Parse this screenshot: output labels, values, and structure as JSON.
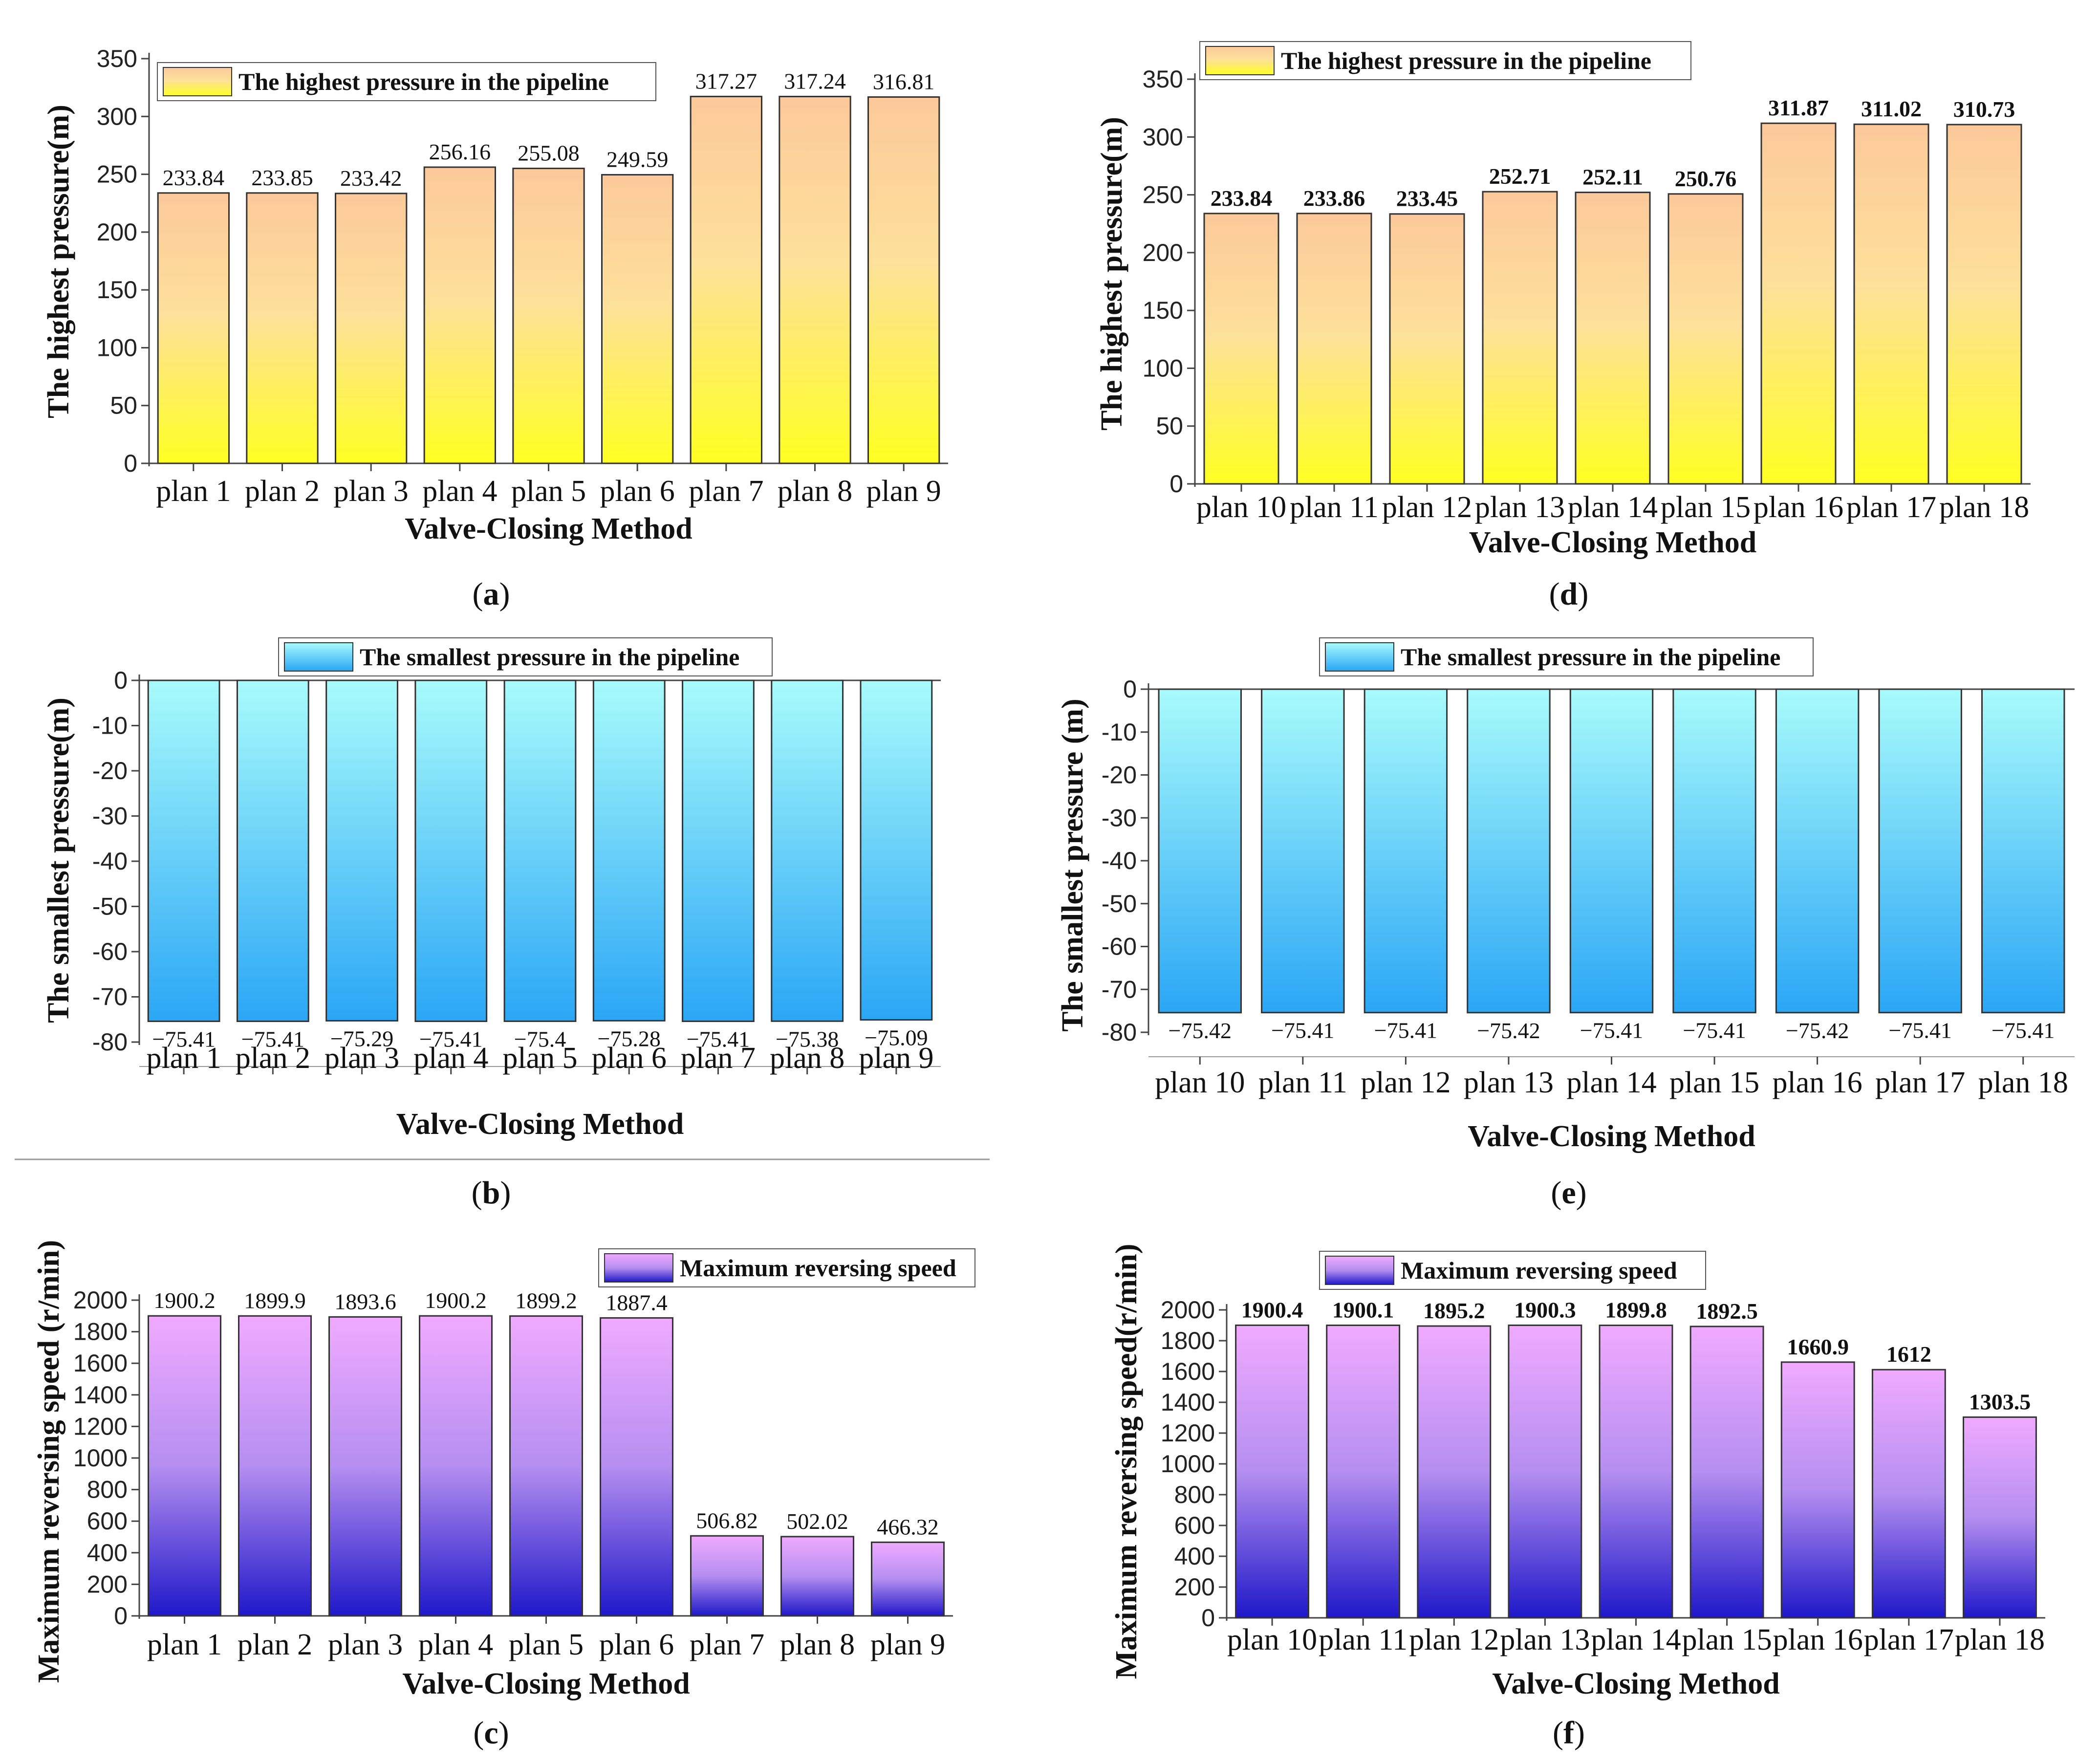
{
  "colors": {
    "orange_top": "#fcc99a",
    "yellow_bottom": "#ffff22",
    "cyan_top": "#a8fbfb",
    "blue_bottom": "#2aa6f5",
    "violet_top": "#f0aaff",
    "indigo_bottom": "#1f18c9",
    "edge": "#333333",
    "axis": "#444444"
  },
  "captions": {
    "a": {
      "open": "(",
      "letter": "a",
      "close": ")"
    },
    "b": {
      "open": "(",
      "letter": "b",
      "close": ")"
    },
    "c": {
      "open": "(",
      "letter": "c",
      "close": ")"
    },
    "d": {
      "open": "(",
      "letter": "d",
      "close": ")"
    },
    "e": {
      "open": "(",
      "letter": "e",
      "close": ")"
    },
    "f": {
      "open": "(",
      "letter": "f",
      "close": ")"
    }
  },
  "chart_data": [
    {
      "id": "a",
      "type": "bar",
      "theme": "orange",
      "title": "The highest pressure in the pipeline",
      "xlabel": "Valve-Closing Method",
      "ylabel": "The highest pressure(m)",
      "categories": [
        "plan 1",
        "plan 2",
        "plan 3",
        "plan 4",
        "plan 5",
        "plan 6",
        "plan 7",
        "plan 8",
        "plan 9"
      ],
      "values": [
        233.84,
        233.85,
        233.42,
        256.16,
        255.08,
        249.59,
        317.27,
        317.24,
        316.81
      ],
      "data_labels": [
        "233.84",
        "233.85",
        "233.42",
        "256.16",
        "255.08",
        "249.59",
        "317.27",
        "317.24",
        "316.81"
      ],
      "ylim": [
        0,
        350
      ],
      "yticks": [
        0,
        50,
        100,
        150,
        200,
        250,
        300,
        350
      ],
      "ytick_labels": [
        "0",
        "50",
        "100",
        "150",
        "200",
        "250",
        "300",
        "350"
      ],
      "legend": "top-left",
      "label_weight": "normal"
    },
    {
      "id": "b",
      "type": "bar",
      "theme": "cyan",
      "title": "The smallest pressure in the pipeline",
      "xlabel": "Valve-Closing Method",
      "ylabel": "The smallest pressure(m)",
      "categories": [
        "plan 1",
        "plan 2",
        "plan 3",
        "plan 4",
        "plan 5",
        "plan 6",
        "plan 7",
        "plan 8",
        "plan 9"
      ],
      "values": [
        -75.41,
        -75.41,
        -75.29,
        -75.41,
        -75.4,
        -75.28,
        -75.41,
        -75.38,
        -75.09
      ],
      "data_labels": [
        "−75.41",
        "−75.41",
        "−75.29",
        "−75.41",
        "−75.4",
        "−75.28",
        "−75.41",
        "−75.38",
        "−75.09"
      ],
      "ylim": [
        -80,
        0
      ],
      "yticks": [
        0,
        -10,
        -20,
        -30,
        -40,
        -50,
        -60,
        -70,
        -80
      ],
      "ytick_labels": [
        "0",
        "-10",
        "-20",
        "-30",
        "-40",
        "-50",
        "-60",
        "-70",
        "-80"
      ],
      "legend": "top-center",
      "label_weight": "normal"
    },
    {
      "id": "c",
      "type": "bar",
      "theme": "violet",
      "title": "Maximum reversing speed",
      "xlabel": "Valve-Closing Method",
      "ylabel": "Maximum reversing speed (r/min)",
      "categories": [
        "plan 1",
        "plan 2",
        "plan 3",
        "plan 4",
        "plan 5",
        "plan 6",
        "plan 7",
        "plan 8",
        "plan 9"
      ],
      "values": [
        1900.2,
        1899.9,
        1893.6,
        1900.2,
        1899.2,
        1887.4,
        506.82,
        502.02,
        466.32
      ],
      "data_labels": [
        "1900.2",
        "1899.9",
        "1893.6",
        "1900.2",
        "1899.2",
        "1887.4",
        "506.82",
        "502.02",
        "466.32"
      ],
      "ylim": [
        0,
        2000
      ],
      "yticks": [
        0,
        200,
        400,
        600,
        800,
        1000,
        1200,
        1400,
        1600,
        1800,
        2000
      ],
      "ytick_labels": [
        "0",
        "200",
        "400",
        "600",
        "800",
        "1000",
        "1200",
        "1400",
        "1600",
        "1800",
        "2000"
      ],
      "legend": "top-right",
      "label_weight": "normal"
    },
    {
      "id": "d",
      "type": "bar",
      "theme": "orange",
      "title": "The highest pressure in the pipeline",
      "xlabel": "Valve-Closing Method",
      "ylabel": "The highest pressure(m)",
      "categories": [
        "plan 10",
        "plan 11",
        "plan 12",
        "plan 13",
        "plan 14",
        "plan 15",
        "plan 16",
        "plan 17",
        "plan 18"
      ],
      "values": [
        233.84,
        233.86,
        233.45,
        252.71,
        252.11,
        250.76,
        311.87,
        311.02,
        310.73
      ],
      "data_labels": [
        "233.84",
        "233.86",
        "233.45",
        "252.71",
        "252.11",
        "250.76",
        "311.87",
        "311.02",
        "310.73"
      ],
      "ylim": [
        0,
        350
      ],
      "yticks": [
        0,
        50,
        100,
        150,
        200,
        250,
        300,
        350
      ],
      "ytick_labels": [
        "0",
        "50",
        "100",
        "150",
        "200",
        "250",
        "300",
        "350"
      ],
      "legend": "top-left",
      "label_weight": "bold"
    },
    {
      "id": "e",
      "type": "bar",
      "theme": "cyan",
      "title": "The smallest pressure in the pipeline",
      "xlabel": "Valve-Closing Method",
      "ylabel": "The smallest pressure (m)",
      "categories": [
        "plan 10",
        "plan 11",
        "plan 12",
        "plan 13",
        "plan 14",
        "plan 15",
        "plan 16",
        "plan 17",
        "plan 18"
      ],
      "values": [
        -75.42,
        -75.41,
        -75.41,
        -75.42,
        -75.41,
        -75.41,
        -75.42,
        -75.41,
        -75.41
      ],
      "data_labels": [
        "−75.42",
        "−75.41",
        "−75.41",
        "−75.42",
        "−75.41",
        "−75.41",
        "−75.42",
        "−75.41",
        "−75.41"
      ],
      "ylim": [
        -80,
        0
      ],
      "yticks": [
        0,
        -10,
        -20,
        -30,
        -40,
        -50,
        -60,
        -70,
        -80
      ],
      "ytick_labels": [
        "0",
        "-10",
        "-20",
        "-30",
        "-40",
        "-50",
        "-60",
        "-70",
        "-80"
      ],
      "legend": "top-center",
      "label_weight": "normal"
    },
    {
      "id": "f",
      "type": "bar",
      "theme": "violet",
      "title": "Maximum reversing speed",
      "xlabel": "Valve-Closing Method",
      "ylabel": "Maximum reversing speed(r/min)",
      "categories": [
        "plan 10",
        "plan 11",
        "plan 12",
        "plan 13",
        "plan 14",
        "plan 15",
        "plan 16",
        "plan 17",
        "plan 18"
      ],
      "values": [
        1900.4,
        1900.1,
        1895.2,
        1900.3,
        1899.8,
        1892.5,
        1660.9,
        1612,
        1303.5
      ],
      "data_labels": [
        "1900.4",
        "1900.1",
        "1895.2",
        "1900.3",
        "1899.8",
        "1892.5",
        "1660.9",
        "1612",
        "1303.5"
      ],
      "ylim": [
        0,
        2000
      ],
      "yticks": [
        0,
        200,
        400,
        600,
        800,
        1000,
        1200,
        1400,
        1600,
        1800,
        2000
      ],
      "ytick_labels": [
        "0",
        "200",
        "400",
        "600",
        "800",
        "1000",
        "1200",
        "1400",
        "1600",
        "1800",
        "2000"
      ],
      "legend": "top-left",
      "label_weight": "bold"
    }
  ]
}
